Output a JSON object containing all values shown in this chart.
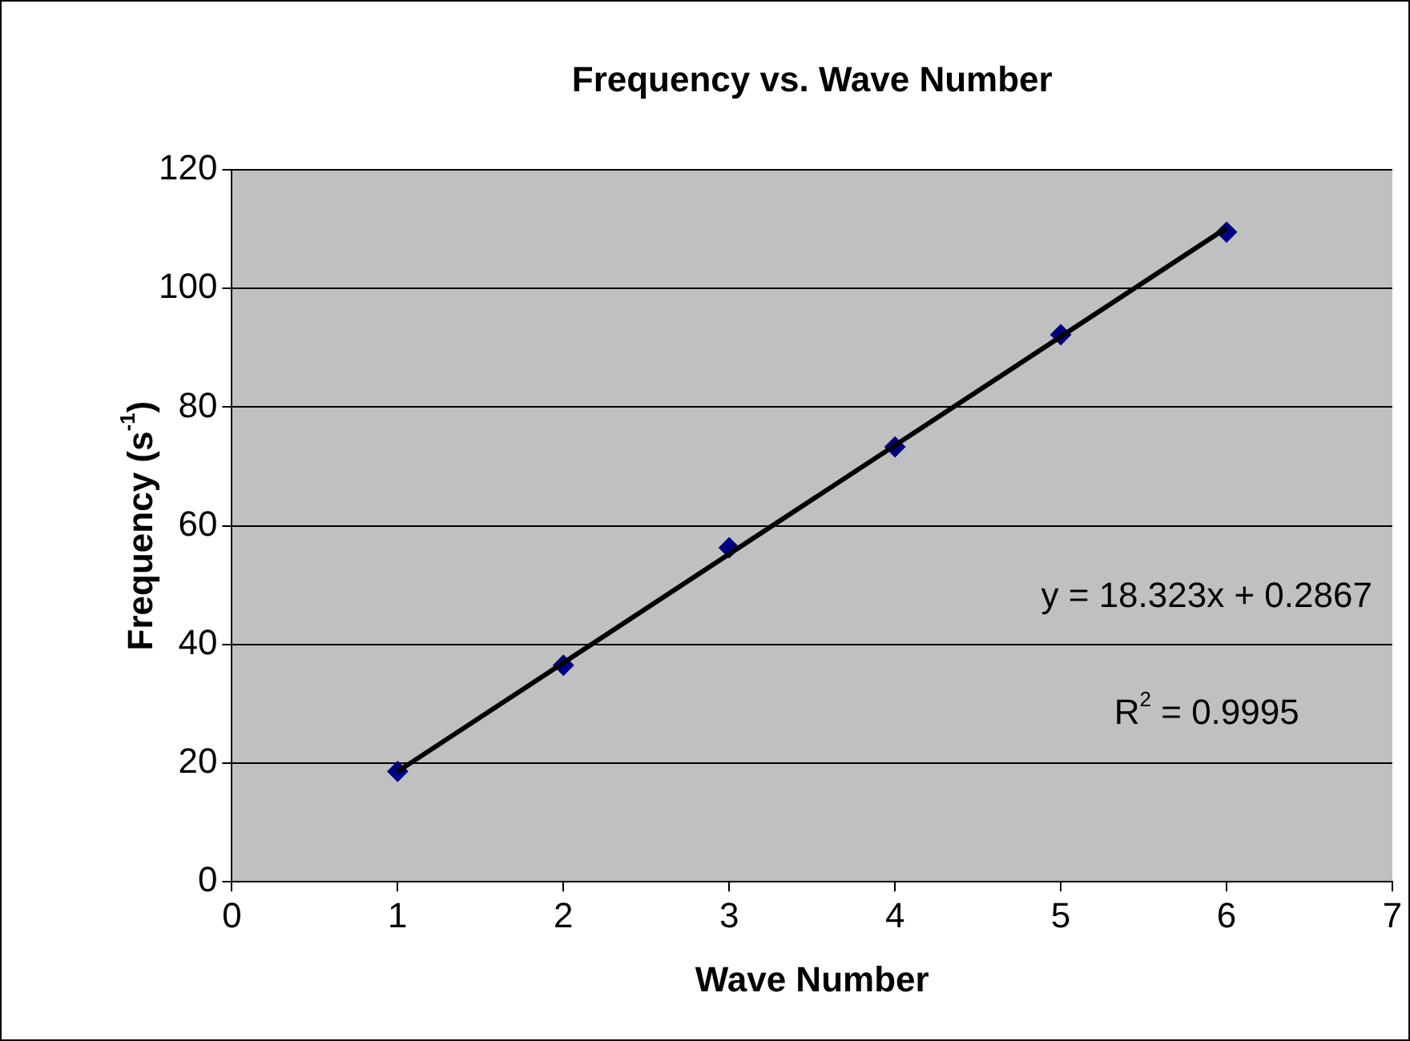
{
  "chart_data": {
    "type": "scatter",
    "title": "Frequency vs. Wave Number",
    "xlabel": "Wave Number",
    "ylabel": "Frequency (s$^{-1}$)",
    "xlim": [
      0,
      7
    ],
    "xticks": [
      0,
      1,
      2,
      3,
      4,
      5,
      6,
      7
    ],
    "ylim": [
      0,
      120
    ],
    "yticks": [
      0,
      20,
      40,
      60,
      80,
      100,
      120
    ],
    "grid": "y",
    "series": [
      {
        "type": "scatter",
        "color": "#000080",
        "marker": "diamond",
        "x": [
          1,
          2,
          3,
          4,
          5,
          6
        ],
        "values": [
          18.6,
          36.5,
          56.3,
          73.3,
          92.2,
          109.5
        ]
      },
      {
        "type": "line",
        "color": "#000000",
        "marker": "none",
        "x": [
          1,
          6
        ],
        "values": [
          18.6,
          110.2
        ]
      }
    ],
    "annotations": [
      "y = 18.323x + 0.2867",
      "R$^{2}$ = 0.9995"
    ]
  }
}
